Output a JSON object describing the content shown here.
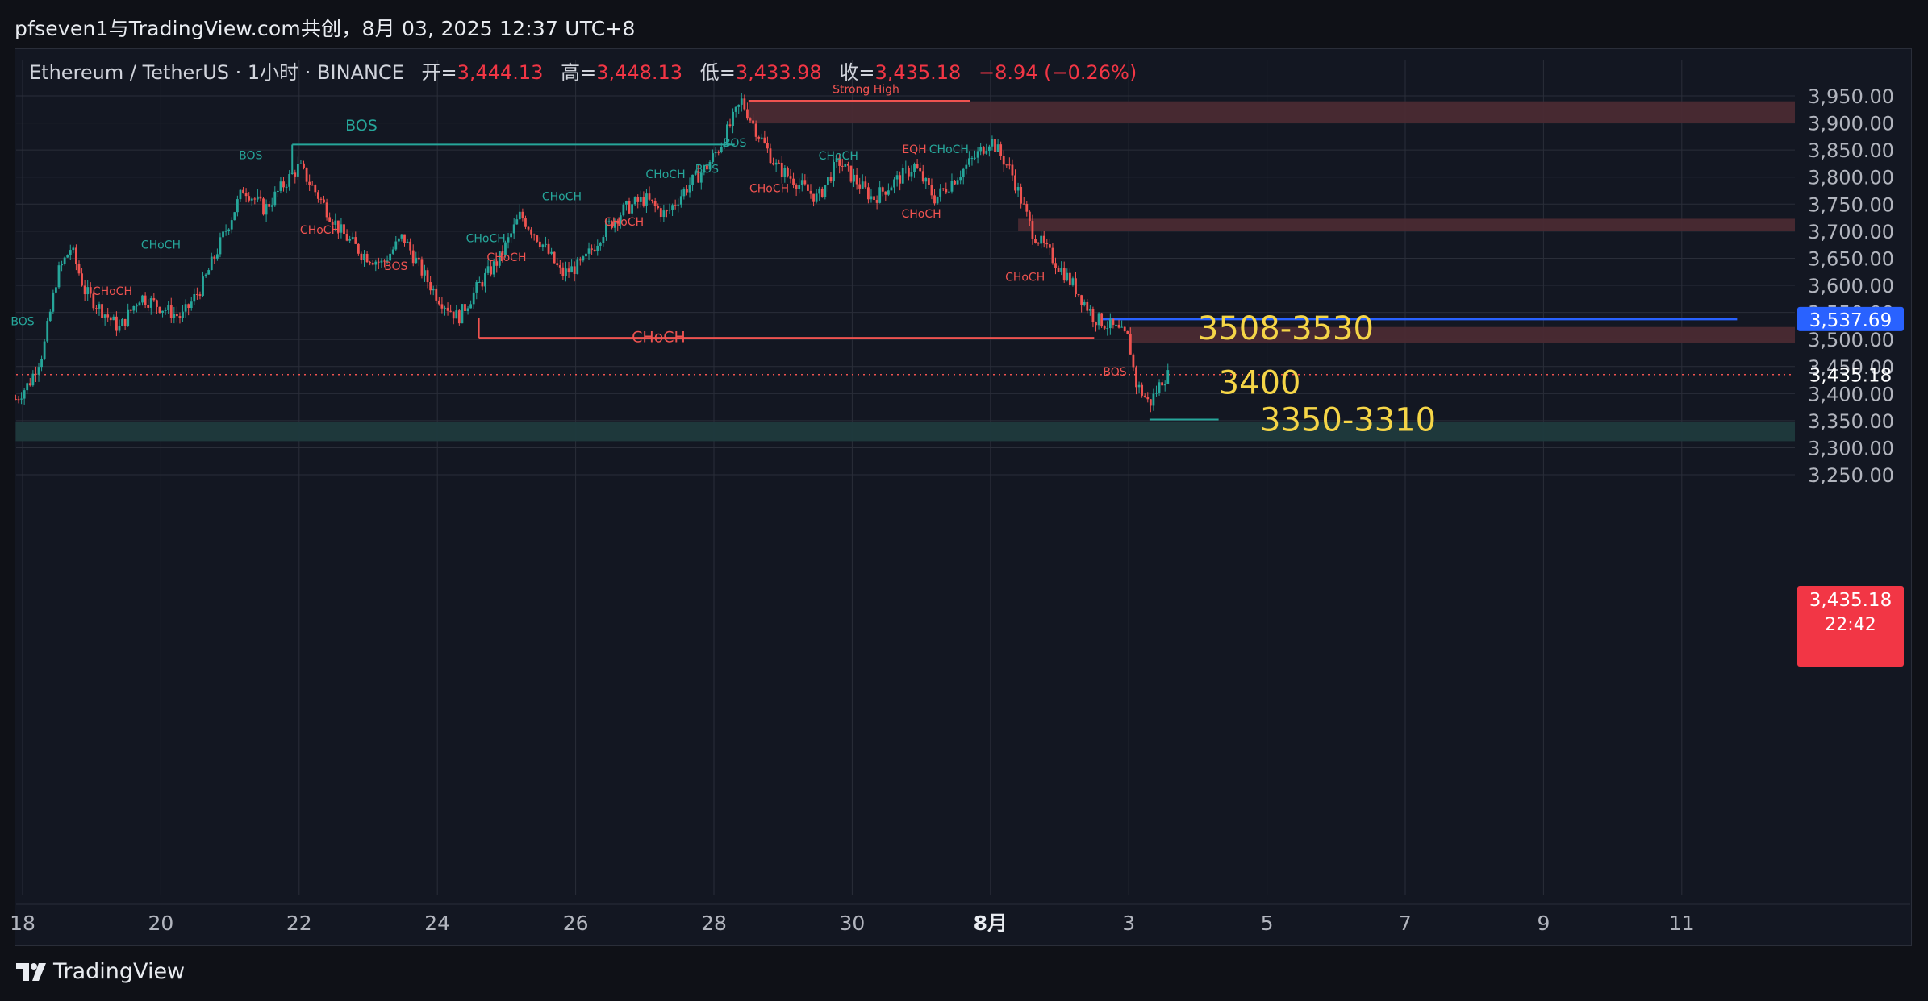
{
  "header": {
    "author_line": "pfseven1与TradingView.com共创，8月 03, 2025 12:37 UTC+8"
  },
  "legend": {
    "symbol": "Ethereum / TetherUS · 1小时 · BINANCE",
    "open_label": "开=",
    "open": "3,444.13",
    "high_label": "高=",
    "high": "3,448.13",
    "low_label": "低=",
    "low": "3,433.98",
    "close_label": "收=",
    "close": "3,435.18",
    "change": "−8.94 (−0.26%)"
  },
  "footer": {
    "brand": "TradingView"
  },
  "colors": {
    "up": "#26a69a",
    "down": "#ef5350",
    "bg": "#131722",
    "grid": "#2a2e39",
    "axis_text": "#b2b5be",
    "zone_red": "#4a2a33",
    "zone_teal": "#1f3a3d",
    "price_line": "#2962ff",
    "note_yellow": "#f5d547"
  },
  "chart_data": {
    "type": "candlestick",
    "symbol": "ETHUSDT",
    "interval": "1小时",
    "exchange": "BINANCE",
    "ylim": [
      3205,
      3975
    ],
    "y_ticks": [
      "3,250.00",
      "3,300.00",
      "3,350.00",
      "3,400.00",
      "3,450.00",
      "3,500.00",
      "3,550.00",
      "3,600.00",
      "3,650.00",
      "3,700.00",
      "3,750.00",
      "3,800.00",
      "3,850.00",
      "3,900.00",
      "3,950.00"
    ],
    "x_ticks": [
      {
        "label": "18",
        "day": 18
      },
      {
        "label": "20",
        "day": 20
      },
      {
        "label": "22",
        "day": 22
      },
      {
        "label": "24",
        "day": 24
      },
      {
        "label": "26",
        "day": 26
      },
      {
        "label": "28",
        "day": 28
      },
      {
        "label": "30",
        "day": 30
      },
      {
        "label": "8月",
        "day": 32
      },
      {
        "label": "3",
        "day": 34
      },
      {
        "label": "5",
        "day": 36
      },
      {
        "label": "7",
        "day": 38
      },
      {
        "label": "9",
        "day": 40
      },
      {
        "label": "11",
        "day": 42
      }
    ],
    "x_axis_note": "day = day of July, 2025 (32 = Aug 1)",
    "price_path": [
      [
        17.9,
        3390
      ],
      [
        18.1,
        3420
      ],
      [
        18.3,
        3480
      ],
      [
        18.5,
        3620
      ],
      [
        18.7,
        3670
      ],
      [
        18.9,
        3590
      ],
      [
        19.1,
        3560
      ],
      [
        19.4,
        3520
      ],
      [
        19.7,
        3580
      ],
      [
        20.0,
        3560
      ],
      [
        20.3,
        3540
      ],
      [
        20.6,
        3600
      ],
      [
        20.9,
        3690
      ],
      [
        21.2,
        3780
      ],
      [
        21.5,
        3740
      ],
      [
        21.8,
        3790
      ],
      [
        22.0,
        3820
      ],
      [
        22.3,
        3760
      ],
      [
        22.6,
        3700
      ],
      [
        22.9,
        3660
      ],
      [
        23.2,
        3640
      ],
      [
        23.5,
        3690
      ],
      [
        23.8,
        3620
      ],
      [
        24.0,
        3580
      ],
      [
        24.3,
        3540
      ],
      [
        24.6,
        3600
      ],
      [
        24.9,
        3650
      ],
      [
        25.2,
        3730
      ],
      [
        25.5,
        3680
      ],
      [
        25.8,
        3620
      ],
      [
        26.1,
        3640
      ],
      [
        26.4,
        3700
      ],
      [
        26.7,
        3740
      ],
      [
        27.0,
        3760
      ],
      [
        27.3,
        3730
      ],
      [
        27.6,
        3780
      ],
      [
        27.9,
        3820
      ],
      [
        28.1,
        3860
      ],
      [
        28.4,
        3940
      ],
      [
        28.6,
        3890
      ],
      [
        28.9,
        3820
      ],
      [
        29.2,
        3790
      ],
      [
        29.5,
        3760
      ],
      [
        29.8,
        3830
      ],
      [
        30.0,
        3800
      ],
      [
        30.3,
        3760
      ],
      [
        30.6,
        3790
      ],
      [
        30.9,
        3820
      ],
      [
        31.2,
        3760
      ],
      [
        31.5,
        3800
      ],
      [
        31.8,
        3840
      ],
      [
        32.0,
        3870
      ],
      [
        32.3,
        3810
      ],
      [
        32.6,
        3700
      ],
      [
        32.9,
        3650
      ],
      [
        33.2,
        3600
      ],
      [
        33.5,
        3540
      ],
      [
        33.8,
        3520
      ],
      [
        34.0,
        3500
      ],
      [
        34.1,
        3420
      ],
      [
        34.3,
        3380
      ],
      [
        34.5,
        3430
      ],
      [
        34.6,
        3435.18
      ]
    ],
    "last_price": "3,435.18",
    "last_price_value": 3435.18,
    "countdown": "22:42",
    "marked_price": "3,537.69",
    "marked_price_value": 3537.69,
    "zones": [
      {
        "low": 3900,
        "high": 3940,
        "from_day": 28.5,
        "color": "red"
      },
      {
        "low": 3700,
        "high": 3723,
        "from_day": 32.4,
        "color": "red"
      },
      {
        "low": 3493,
        "high": 3523,
        "from_day": 34.0,
        "color": "red"
      },
      {
        "low": 3312,
        "high": 3348,
        "from_day": 17.9,
        "color": "teal"
      }
    ],
    "annotations": [
      {
        "text": "Strong High",
        "day": 30.2,
        "value": 3955,
        "color": "red",
        "size": "small"
      },
      {
        "text": "BOS",
        "day": 22.9,
        "value": 3886,
        "color": "teal",
        "size": "medium"
      },
      {
        "text": "CHoCH",
        "day": 27.2,
        "value": 3495,
        "color": "red",
        "size": "medium"
      },
      {
        "text": "3508-3530",
        "day": 35.0,
        "value": 3500,
        "color": "yellow",
        "size": "large"
      },
      {
        "text": "3400",
        "day": 35.3,
        "value": 3400,
        "color": "yellow",
        "size": "large"
      },
      {
        "text": "3350-3310",
        "day": 35.9,
        "value": 3331,
        "color": "yellow",
        "size": "large"
      },
      {
        "text": "BOS",
        "day": 18.0,
        "value": 3526,
        "color": "teal",
        "size": "tiny"
      },
      {
        "text": "CHoCH",
        "day": 19.3,
        "value": 3582,
        "color": "red",
        "size": "tiny"
      },
      {
        "text": "CHoCH",
        "day": 20.0,
        "value": 3668,
        "color": "teal",
        "size": "tiny"
      },
      {
        "text": "BOS",
        "day": 21.3,
        "value": 3833,
        "color": "teal",
        "size": "tiny"
      },
      {
        "text": "CHoCH",
        "day": 22.3,
        "value": 3695,
        "color": "red",
        "size": "tiny"
      },
      {
        "text": "BOS",
        "day": 23.4,
        "value": 3628,
        "color": "red",
        "size": "tiny"
      },
      {
        "text": "CHoCH",
        "day": 24.7,
        "value": 3680,
        "color": "teal",
        "size": "tiny"
      },
      {
        "text": "CHoCH",
        "day": 25.0,
        "value": 3645,
        "color": "red",
        "size": "tiny"
      },
      {
        "text": "CHoCH",
        "day": 25.8,
        "value": 3757,
        "color": "teal",
        "size": "tiny"
      },
      {
        "text": "CHoCH",
        "day": 26.7,
        "value": 3710,
        "color": "red",
        "size": "tiny"
      },
      {
        "text": "CHoCH",
        "day": 27.3,
        "value": 3798,
        "color": "teal",
        "size": "tiny"
      },
      {
        "text": "BOS",
        "day": 27.9,
        "value": 3808,
        "color": "teal",
        "size": "tiny"
      },
      {
        "text": "BOS",
        "day": 28.3,
        "value": 3856,
        "color": "teal",
        "size": "tiny"
      },
      {
        "text": "CHoCH",
        "day": 28.8,
        "value": 3772,
        "color": "red",
        "size": "tiny"
      },
      {
        "text": "CHoCH",
        "day": 29.8,
        "value": 3832,
        "color": "teal",
        "size": "tiny"
      },
      {
        "text": "EQH",
        "day": 30.9,
        "value": 3844,
        "color": "red",
        "size": "tiny"
      },
      {
        "text": "CHoCH",
        "day": 31.4,
        "value": 3844,
        "color": "teal",
        "size": "tiny"
      },
      {
        "text": "CHoCH",
        "day": 31.0,
        "value": 3725,
        "color": "red",
        "size": "tiny"
      },
      {
        "text": "CHoCH",
        "day": 32.5,
        "value": 3608,
        "color": "red",
        "size": "tiny"
      },
      {
        "text": "BOS",
        "day": 33.8,
        "value": 3433,
        "color": "red",
        "size": "tiny"
      }
    ],
    "structure_lines": [
      {
        "from_day": 28.5,
        "to_day": 31.7,
        "value": 3941,
        "color": "red"
      },
      {
        "from_day": 21.9,
        "to_day": 28.3,
        "value": 3860,
        "color": "teal"
      },
      {
        "from_day": 21.9,
        "to_day": 21.9,
        "value": 3860,
        "to_value": 3810,
        "color": "teal"
      },
      {
        "from_day": 24.6,
        "to_day": 33.5,
        "value": 3503,
        "color": "red"
      },
      {
        "from_day": 24.6,
        "to_day": 24.6,
        "value": 3503,
        "to_value": 3540,
        "color": "red"
      },
      {
        "from_day": 33.6,
        "to_day": 42.8,
        "value": 3537.69,
        "color": "blue"
      },
      {
        "from_day": 34.3,
        "to_day": 35.3,
        "value": 3352,
        "color": "teal"
      }
    ]
  }
}
